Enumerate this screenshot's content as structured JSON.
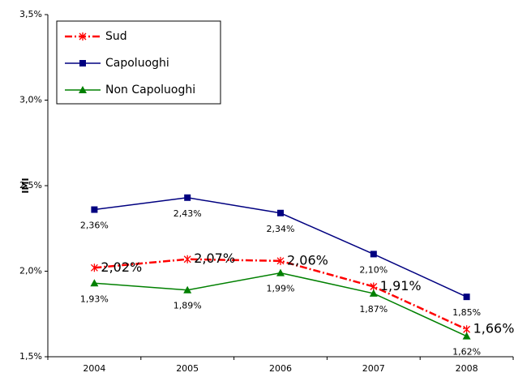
{
  "chart_data": {
    "type": "line",
    "y_label": "IMI",
    "categories": [
      "2004",
      "2005",
      "2006",
      "2007",
      "2008"
    ],
    "series": [
      {
        "name": "Sud",
        "color": "#ff0000",
        "values": [
          2.02,
          2.07,
          2.06,
          1.91,
          1.66
        ],
        "value_labels": [
          "2,02%",
          "2,07%",
          "2,06%",
          "1,91%",
          "1,66%"
        ]
      },
      {
        "name": "Capoluoghi",
        "color": "#000080",
        "values": [
          2.36,
          2.43,
          2.34,
          2.1,
          1.85
        ],
        "value_labels": [
          "2,36%",
          "2,43%",
          "2,34%",
          "2,10%",
          "1,85%"
        ]
      },
      {
        "name": "Non Capoluoghi",
        "color": "#008000",
        "values": [
          1.93,
          1.89,
          1.99,
          1.87,
          1.62
        ],
        "value_labels": [
          "1,93%",
          "1,89%",
          "1,99%",
          "1,87%",
          "1,62%"
        ]
      }
    ],
    "ylim": [
      1.5,
      3.5
    ],
    "yticks": [
      {
        "value": 1.5,
        "label": "1,5%"
      },
      {
        "value": 2.0,
        "label": "2,0%"
      },
      {
        "value": 2.5,
        "label": "2,5%"
      },
      {
        "value": 3.0,
        "label": "3,0%"
      },
      {
        "value": 3.5,
        "label": "3,5%"
      }
    ],
    "legend": "upper left"
  }
}
